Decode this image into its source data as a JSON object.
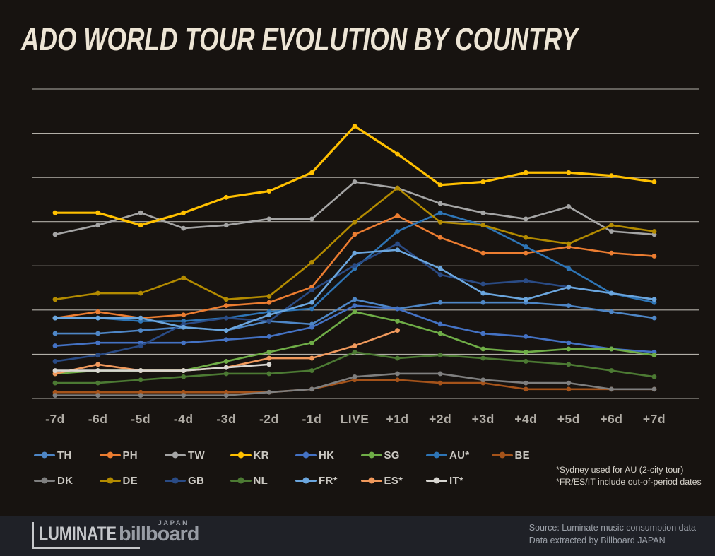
{
  "header": {
    "title": "ADO WORLD TOUR EVOLUTION BY COUNTRY"
  },
  "chart_data": {
    "type": "line",
    "title": "ADO WORLD TOUR EVOLUTION BY COUNTRY",
    "xlabel": "",
    "ylabel": "",
    "ylim": [
      0,
      100
    ],
    "grid": true,
    "gridline_count": 8,
    "legend_position": "bottom",
    "categories": [
      "-7d",
      "-6d",
      "-5d",
      "-4d",
      "-3d",
      "-2d",
      "-1d",
      "LIVE",
      "+1d",
      "+2d",
      "+3d",
      "+4d",
      "+5d",
      "+6d",
      "+7d"
    ],
    "series": [
      {
        "name": "TH",
        "color": "#4E86C6",
        "values": [
          21,
          21,
          22,
          23,
          22,
          25,
          24,
          32,
          29,
          31,
          31,
          31,
          30,
          28,
          26
        ]
      },
      {
        "name": "PH",
        "color": "#EC7D31",
        "values": [
          26,
          28,
          26,
          27,
          30,
          31,
          36,
          53,
          59,
          52,
          47,
          47,
          49,
          47,
          46
        ]
      },
      {
        "name": "TW",
        "color": "#A5A5A5",
        "values": [
          53,
          56,
          60,
          55,
          56,
          58,
          58,
          70,
          68,
          63,
          60,
          58,
          62,
          54,
          53
        ]
      },
      {
        "name": "KR",
        "color": "#FFC000",
        "values": [
          60,
          60,
          56,
          60,
          65,
          67,
          73,
          88,
          79,
          69,
          70,
          73,
          73,
          72,
          70
        ]
      },
      {
        "name": "HK",
        "color": "#4472C4",
        "values": [
          17,
          18,
          18,
          18,
          19,
          20,
          23,
          30,
          29,
          24,
          21,
          20,
          18,
          16,
          15
        ]
      },
      {
        "name": "SG",
        "color": "#6FAD47",
        "values": [
          8,
          9,
          9,
          9,
          12,
          15,
          18,
          28,
          25,
          21,
          16,
          15,
          16,
          16,
          14
        ]
      },
      {
        "name": "AU*",
        "color": "#2E75B6",
        "values": [
          26,
          26,
          25,
          25,
          26,
          28,
          29,
          42,
          54,
          60,
          56,
          49,
          42,
          34,
          31
        ]
      },
      {
        "name": "BE",
        "color": "#A5531A",
        "values": [
          2,
          2,
          2,
          2,
          2,
          2,
          3,
          6,
          6,
          5,
          5,
          3,
          3,
          3,
          3
        ]
      },
      {
        "name": "DK",
        "color": "#7F7F7F",
        "values": [
          1,
          1,
          1,
          1,
          1,
          2,
          3,
          7,
          8,
          8,
          6,
          5,
          5,
          3,
          3
        ]
      },
      {
        "name": "DE",
        "color": "#B38B00",
        "values": [
          32,
          34,
          34,
          39,
          32,
          33,
          44,
          57,
          68,
          57,
          56,
          52,
          50,
          56,
          54
        ]
      },
      {
        "name": "GB",
        "color": "#2A4B85",
        "values": [
          12,
          14,
          17,
          24,
          26,
          25,
          35,
          43,
          50,
          40,
          37,
          38,
          36,
          34,
          32
        ]
      },
      {
        "name": "NL",
        "color": "#4C7A33",
        "values": [
          5,
          5,
          6,
          7,
          8,
          8,
          9,
          15,
          13,
          14,
          13,
          12,
          11,
          9,
          7
        ]
      },
      {
        "name": "FR*",
        "color": "#6BA6DE",
        "values": [
          26,
          26,
          26,
          23,
          22,
          27,
          31,
          47,
          48,
          42,
          34,
          32,
          36,
          34,
          32
        ]
      },
      {
        "name": "ES*",
        "color": "#F0995C",
        "values": [
          8,
          11,
          9,
          9,
          10,
          13,
          13,
          17,
          22,
          null,
          null,
          null,
          null,
          null,
          null
        ]
      },
      {
        "name": "IT*",
        "color": "#D8D6D1",
        "values": [
          9,
          9,
          9,
          9,
          10,
          11,
          null,
          null,
          null,
          null,
          null,
          null,
          null,
          null,
          null
        ]
      }
    ]
  },
  "notes": {
    "line1": "*Sydney used for AU (2-city tour)",
    "line2": "*FR/ES/IT include out-of-period dates"
  },
  "footer": {
    "luminate_logo": "LUMINATE",
    "billboard_logo": "billboard",
    "billboard_sub": "JAPAN",
    "source_line1": "Source: Luminate music consumption data",
    "source_line2": "Data extracted by Billboard JAPAN"
  },
  "colors": {
    "background": "#171310",
    "footer_bar": "#1F2127",
    "gridline": "#D9D6CF",
    "title_text": "#EDE5D5",
    "axis_label": "#B0ACA5",
    "legend_label": "#CBC8C2",
    "note_text": "#D6D2CA",
    "source_text": "#9BA0A8"
  }
}
